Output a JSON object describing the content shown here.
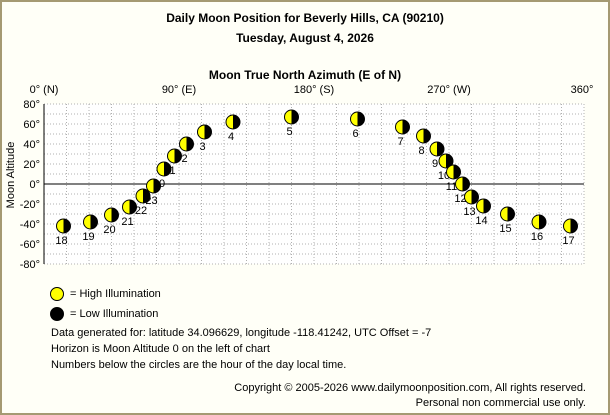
{
  "header": {
    "title": "Daily Moon Position for Beverly Hills, CA (90210)",
    "date": "Tuesday, August 4, 2026"
  },
  "chart_data": {
    "type": "scatter",
    "title": "Moon True North Azimuth (E of N)",
    "xlabel": "Moon True North Azimuth (E of N)",
    "ylabel": "Moon Altitude",
    "xlim": [
      0,
      360
    ],
    "ylim": [
      -80,
      80
    ],
    "grid": true,
    "x_ticks": [
      {
        "value": 0,
        "label": "0° (N)"
      },
      {
        "value": 90,
        "label": "90° (E)"
      },
      {
        "value": 180,
        "label": "180° (S)"
      },
      {
        "value": 270,
        "label": "270° (W)"
      },
      {
        "value": 360,
        "label": "360°"
      }
    ],
    "y_ticks": [
      {
        "value": 80,
        "label": "80°"
      },
      {
        "value": 60,
        "label": "60°"
      },
      {
        "value": 40,
        "label": "40°"
      },
      {
        "value": 20,
        "label": "20°"
      },
      {
        "value": 0,
        "label": "0°"
      },
      {
        "value": -20,
        "label": "-20°"
      },
      {
        "value": -40,
        "label": "-40°"
      },
      {
        "value": -60,
        "label": "-60°"
      },
      {
        "value": -80,
        "label": "-80°"
      }
    ],
    "points": [
      {
        "hour": "0",
        "azimuth": 80,
        "altitude": 15
      },
      {
        "hour": "1",
        "azimuth": 87,
        "altitude": 28
      },
      {
        "hour": "2",
        "azimuth": 95,
        "altitude": 40
      },
      {
        "hour": "3",
        "azimuth": 107,
        "altitude": 52
      },
      {
        "hour": "4",
        "azimuth": 126,
        "altitude": 62
      },
      {
        "hour": "5",
        "azimuth": 165,
        "altitude": 67
      },
      {
        "hour": "6",
        "azimuth": 209,
        "altitude": 65
      },
      {
        "hour": "7",
        "azimuth": 239,
        "altitude": 57
      },
      {
        "hour": "8",
        "azimuth": 253,
        "altitude": 48
      },
      {
        "hour": "9",
        "azimuth": 262,
        "altitude": 35
      },
      {
        "hour": "10",
        "azimuth": 268,
        "altitude": 23
      },
      {
        "hour": "11",
        "azimuth": 273,
        "altitude": 12
      },
      {
        "hour": "12",
        "azimuth": 279,
        "altitude": 0
      },
      {
        "hour": "13",
        "azimuth": 285,
        "altitude": -13
      },
      {
        "hour": "14",
        "azimuth": 293,
        "altitude": -22
      },
      {
        "hour": "15",
        "azimuth": 309,
        "altitude": -30
      },
      {
        "hour": "16",
        "azimuth": 330,
        "altitude": -38
      },
      {
        "hour": "17",
        "azimuth": 351,
        "altitude": -42
      },
      {
        "hour": "18",
        "azimuth": 13,
        "altitude": -42
      },
      {
        "hour": "19",
        "azimuth": 31,
        "altitude": -38
      },
      {
        "hour": "20",
        "azimuth": 45,
        "altitude": -31
      },
      {
        "hour": "21",
        "azimuth": 57,
        "altitude": -23
      },
      {
        "hour": "22",
        "azimuth": 66,
        "altitude": -12
      },
      {
        "hour": "23",
        "azimuth": 73,
        "altitude": -2
      }
    ]
  },
  "legend": {
    "high": "= High Illumination",
    "low": "= Low Illumination"
  },
  "notes": {
    "line1": "Data generated for: latitude 34.096629, longitude -118.41242, UTC Offset = -7",
    "line2": "Horizon is Moon Altitude 0 on the left of chart",
    "line3": "Numbers below the circles are the hour of the day local time."
  },
  "footer": {
    "copyright": "Copyright © 2005-2026 www.dailymoonposition.com, All rights reserved.",
    "personal": "Personal non commercial use only."
  },
  "colors": {
    "moon_light": "#ffff00",
    "moon_dark": "#000000",
    "grid": "#b0b0b0",
    "frame": "#a59a73",
    "background": "#fffff7"
  }
}
